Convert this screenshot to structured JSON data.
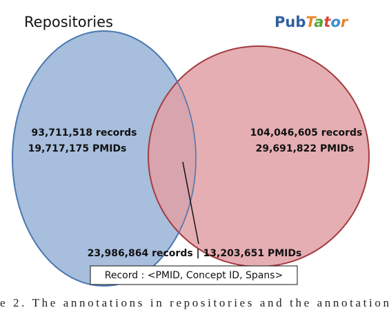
{
  "left_set": {
    "title": "Repositories",
    "records": "93,711,518 records",
    "pmids": "19,717,175 PMIDs"
  },
  "right_set": {
    "title_parts": [
      "Pub",
      "T",
      "a",
      "t",
      "o",
      "r"
    ],
    "records": "104,046,605 records",
    "pmids": "29,691,822 PMIDs"
  },
  "intersection": {
    "label": "23,986,864 records | 13,203,651 PMIDs"
  },
  "record_format": "Record : <PMID, Concept ID, Spans>",
  "caption": "e 2. The annotations in repositories and the annotation"
}
